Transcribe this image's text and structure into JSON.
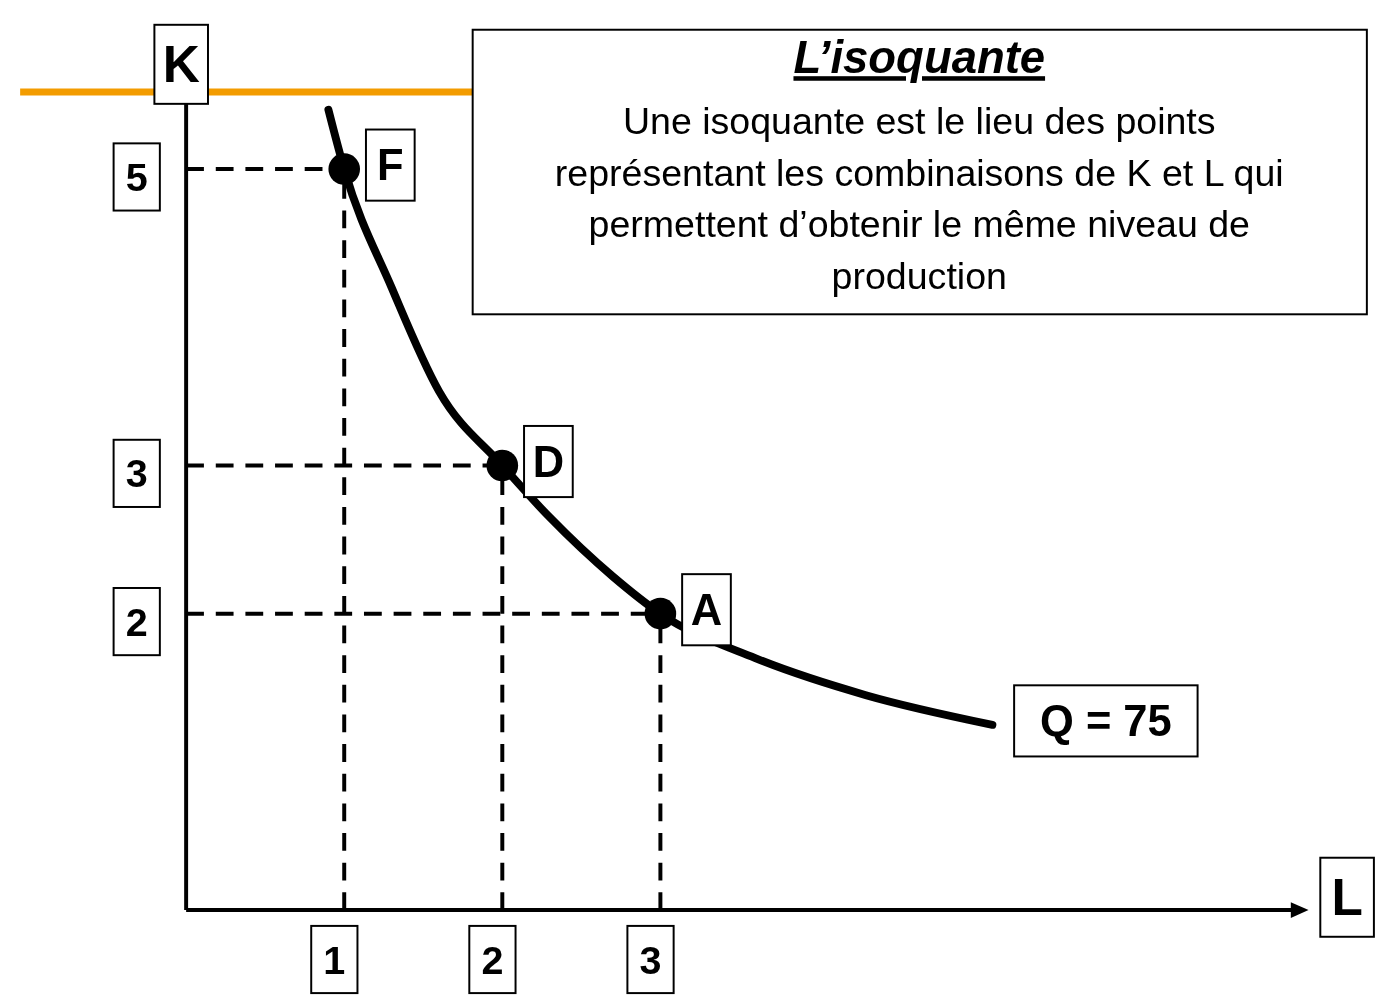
{
  "chart_data": {
    "type": "line",
    "title": "L’isoquante",
    "subtitle": "Une isoquante est le lieu des points représentant les combinaisons de K et L qui permettent d’obtenir le même niveau de production",
    "xlabel": "L",
    "ylabel": "K",
    "xlim": [
      0,
      7
    ],
    "ylim": [
      0,
      5.5
    ],
    "xticks": [
      1,
      2,
      3
    ],
    "yticks": [
      2,
      3,
      5
    ],
    "series": [
      {
        "color": "#000000",
        "x": [
          0.9,
          1,
          1.3,
          1.6,
          2,
          2.3,
          2.7,
          3,
          3.6,
          4.3,
          5.1
        ],
        "values": [
          5.4,
          5,
          4.2,
          3.5,
          3,
          2.65,
          2.25,
          2,
          1.7,
          1.45,
          1.25
        ]
      },
      {
        "type": "scatter",
        "marker": "circle",
        "color": "#000000",
        "x": [
          1,
          2,
          3
        ],
        "values": [
          5,
          3,
          2
        ]
      }
    ],
    "annotations": [
      {
        "text": "F",
        "x": 1,
        "y": 5
      },
      {
        "text": "D",
        "x": 2,
        "y": 3
      },
      {
        "text": "A",
        "x": 3,
        "y": 2
      },
      {
        "text": "Q = 75",
        "x": 5.1,
        "y": 1.25
      }
    ],
    "ref_lines": [
      {
        "axis": "x",
        "value": 1,
        "color": "#000000",
        "line_style": "dashed"
      },
      {
        "axis": "x",
        "value": 2,
        "color": "#000000",
        "line_style": "dashed"
      },
      {
        "axis": "x",
        "value": 3,
        "color": "#000000",
        "line_style": "dashed"
      },
      {
        "axis": "y",
        "value": 5,
        "color": "#000000",
        "line_style": "dashed"
      },
      {
        "axis": "y",
        "value": 3,
        "color": "#000000",
        "line_style": "dashed"
      },
      {
        "axis": "y",
        "value": 2,
        "color": "#000000",
        "line_style": "dashed"
      }
    ]
  }
}
